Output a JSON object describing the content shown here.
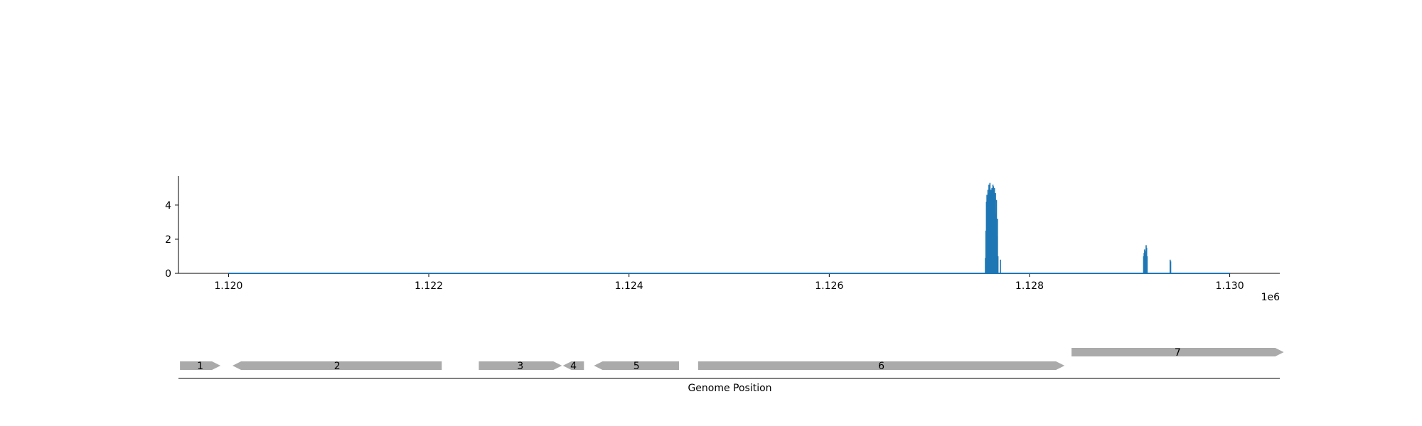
{
  "chart_data": [
    {
      "type": "area",
      "title": "",
      "xlabel": "",
      "ylabel": "",
      "offset_label": "1e6",
      "xlim": [
        1119500,
        1130500
      ],
      "ylim": [
        0,
        5.7
      ],
      "xticks": [
        1120000,
        1122000,
        1124000,
        1126000,
        1128000,
        1130000
      ],
      "xtick_labels": [
        "1.120",
        "1.122",
        "1.124",
        "1.126",
        "1.128",
        "1.130"
      ],
      "yticks": [
        0,
        2,
        4
      ],
      "ytick_labels": [
        "0",
        "2",
        "4"
      ],
      "baseline_x": [
        1120000,
        1130000
      ],
      "x": [
        1127560,
        1127565,
        1127570,
        1127575,
        1127580,
        1127585,
        1127590,
        1127595,
        1127600,
        1127605,
        1127610,
        1127615,
        1127620,
        1127625,
        1127630,
        1127635,
        1127640,
        1127645,
        1127650,
        1127655,
        1127660,
        1127665,
        1127670,
        1127675,
        1127680,
        1127685,
        1127700,
        1127710,
        1129140,
        1129145,
        1129150,
        1129155,
        1129160,
        1129165,
        1129170,
        1129175,
        1129405,
        1129410
      ],
      "y": [
        0.9,
        2.5,
        4.2,
        4.6,
        4.4,
        4.9,
        4.7,
        5.2,
        5.0,
        5.3,
        4.8,
        4.9,
        4.6,
        5.0,
        4.9,
        5.2,
        5.1,
        4.8,
        5.0,
        4.4,
        4.7,
        3.5,
        4.3,
        2.2,
        3.2,
        1.0,
        0.0,
        0.8,
        1.0,
        1.2,
        1.4,
        1.3,
        1.1,
        1.65,
        1.5,
        1.0,
        0.8,
        0.7
      ],
      "color": "#1f77b4"
    },
    {
      "type": "gene_track",
      "xlabel": "Genome Position",
      "genes": [
        {
          "label": "1",
          "start": 1119515,
          "end": 1119920,
          "strand": "+",
          "row": 0
        },
        {
          "label": "2",
          "start": 1120040,
          "end": 1122130,
          "strand": "-",
          "row": 0
        },
        {
          "label": "3",
          "start": 1122500,
          "end": 1123330,
          "strand": "+",
          "row": 0
        },
        {
          "label": "4",
          "start": 1123340,
          "end": 1123550,
          "strand": "-",
          "row": 0
        },
        {
          "label": "5",
          "start": 1123650,
          "end": 1124500,
          "strand": "-",
          "row": 0
        },
        {
          "label": "6",
          "start": 1124690,
          "end": 1128350,
          "strand": "+",
          "row": 0
        },
        {
          "label": "7",
          "start": 1128420,
          "end": 1130540,
          "strand": "+",
          "row": 1
        }
      ],
      "gene_color": "#aaaaaa"
    }
  ]
}
